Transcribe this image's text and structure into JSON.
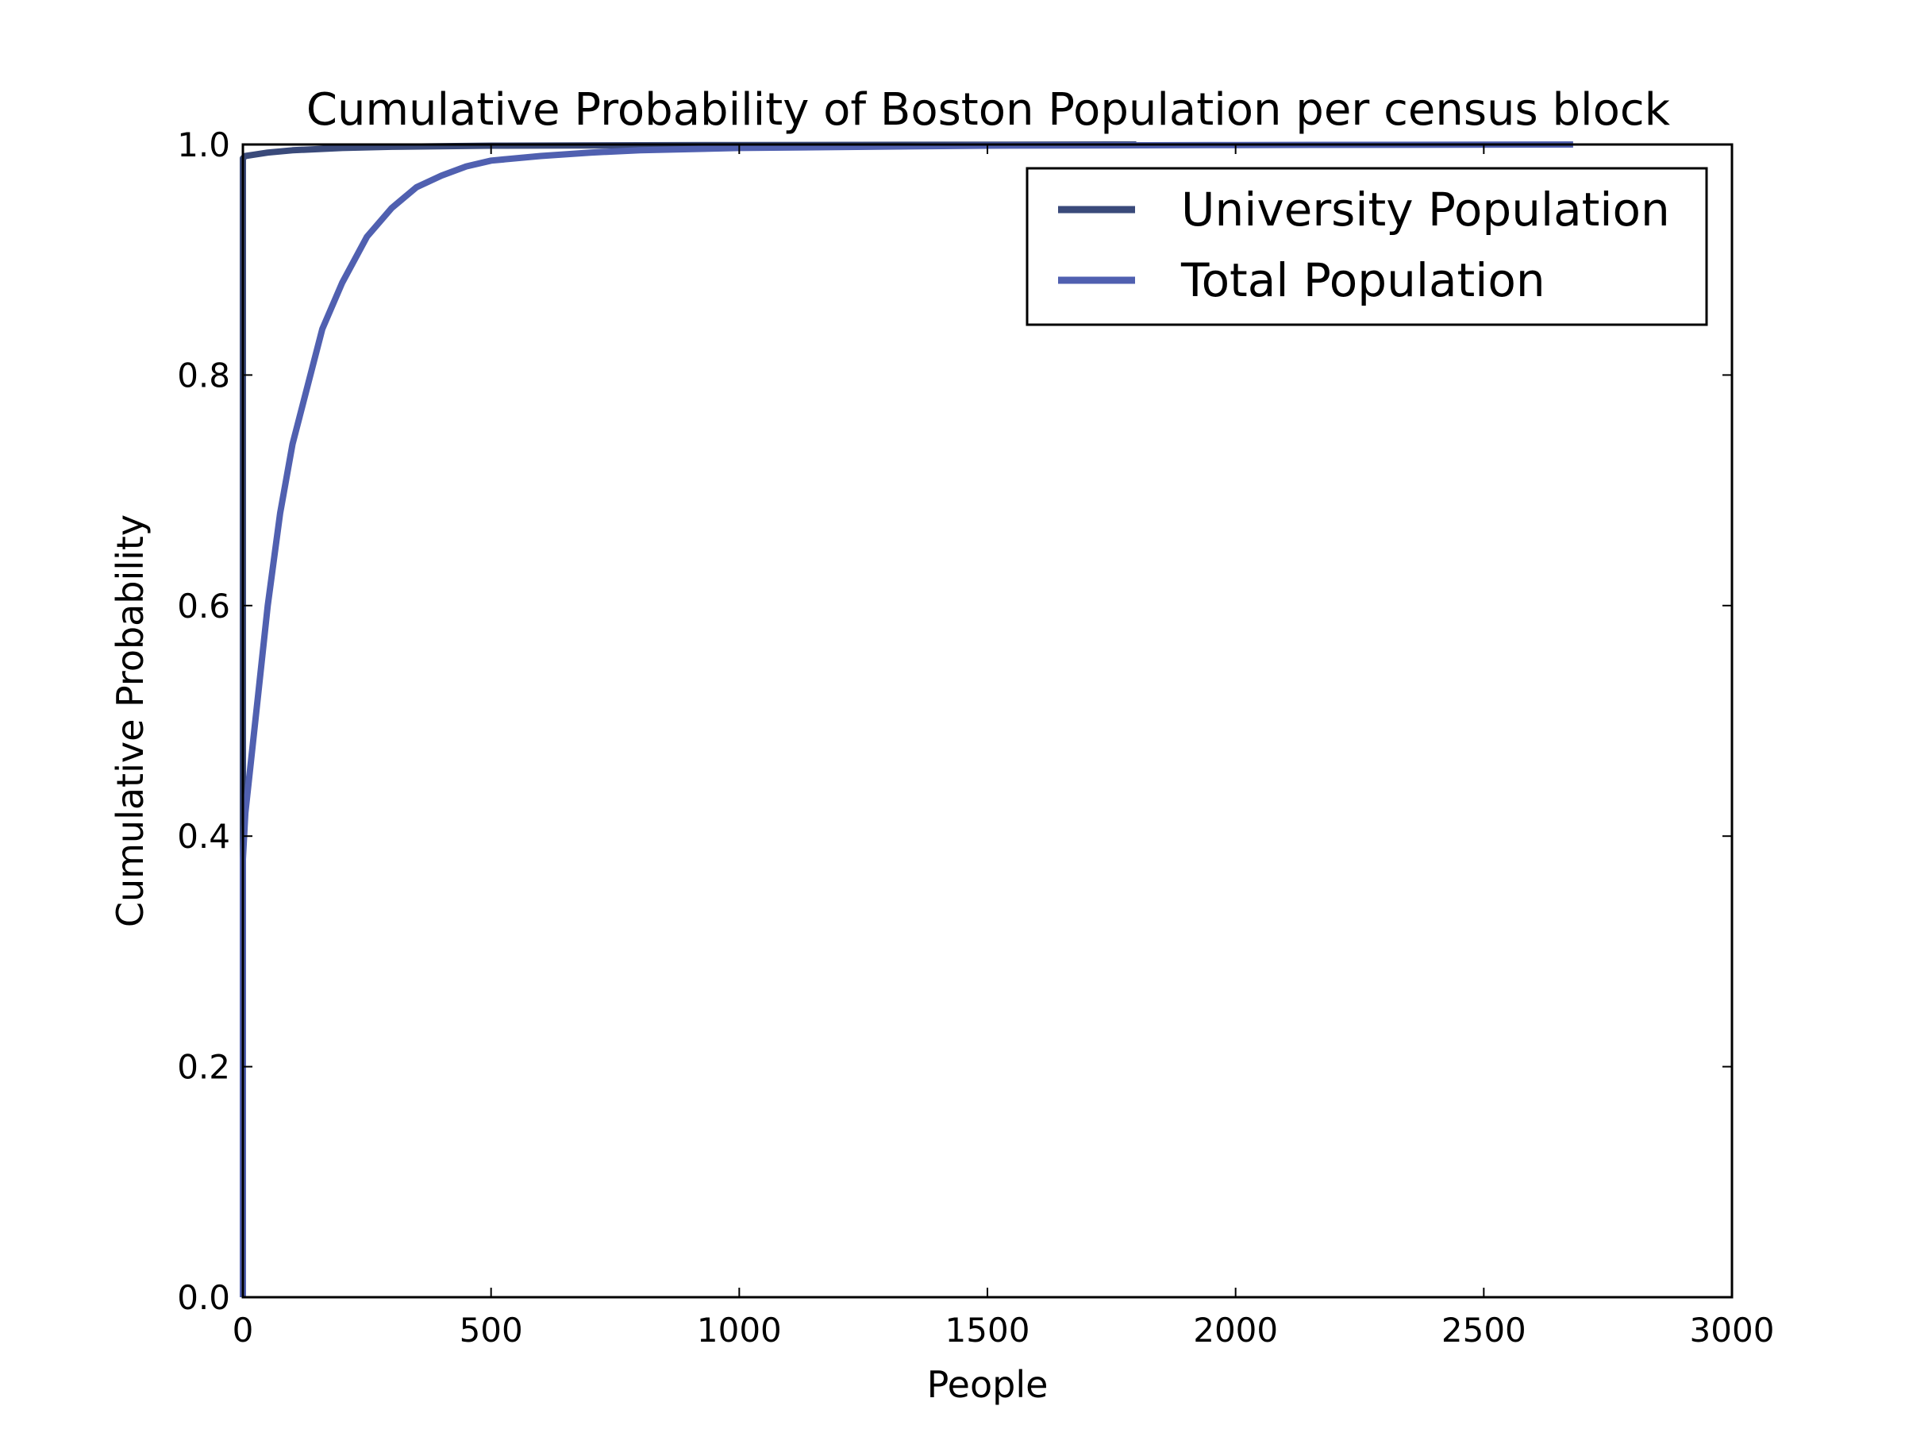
{
  "chart_data": {
    "type": "line",
    "title": "Cumulative Probability of Boston Population per census block",
    "xlabel": "People",
    "ylabel": "Cumulative Probability",
    "xlim": [
      0,
      3000
    ],
    "ylim": [
      0,
      1
    ],
    "xticks": [
      "0",
      "500",
      "1000",
      "1500",
      "2000",
      "2500",
      "3000"
    ],
    "yticks": [
      "0.0",
      "0.2",
      "0.4",
      "0.6",
      "0.8",
      "1.0"
    ],
    "grid": false,
    "legend_position": "top-right",
    "series": [
      {
        "name": "University Population",
        "color": "#3a4a7a",
        "points": [
          [
            0,
            0
          ],
          [
            0,
            0.988
          ],
          [
            5,
            0.99
          ],
          [
            20,
            0.991
          ],
          [
            50,
            0.993
          ],
          [
            100,
            0.995
          ],
          [
            200,
            0.997
          ],
          [
            300,
            0.998
          ],
          [
            500,
            0.999
          ],
          [
            1000,
            0.9995
          ],
          [
            1800,
            1.0
          ]
        ]
      },
      {
        "name": "Total Population",
        "color": "#5060b0",
        "points": [
          [
            0,
            0
          ],
          [
            0,
            0.38
          ],
          [
            5,
            0.42
          ],
          [
            15,
            0.46
          ],
          [
            30,
            0.52
          ],
          [
            50,
            0.6
          ],
          [
            75,
            0.68
          ],
          [
            100,
            0.74
          ],
          [
            130,
            0.79
          ],
          [
            160,
            0.84
          ],
          [
            200,
            0.88
          ],
          [
            250,
            0.92
          ],
          [
            300,
            0.945
          ],
          [
            350,
            0.963
          ],
          [
            400,
            0.973
          ],
          [
            450,
            0.981
          ],
          [
            500,
            0.986
          ],
          [
            600,
            0.99
          ],
          [
            700,
            0.993
          ],
          [
            800,
            0.995
          ],
          [
            1000,
            0.997
          ],
          [
            1500,
            0.999
          ],
          [
            2000,
            0.9995
          ],
          [
            2680,
            1.0
          ]
        ]
      }
    ]
  }
}
